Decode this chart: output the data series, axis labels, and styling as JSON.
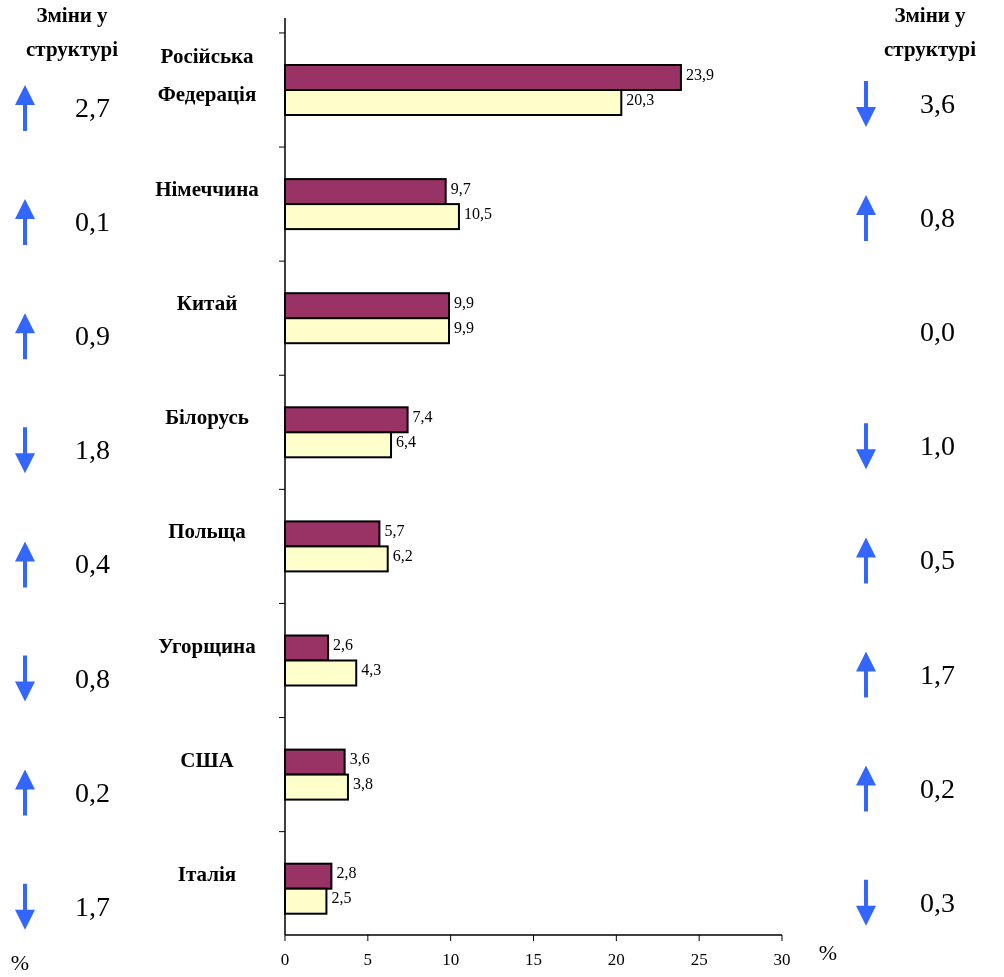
{
  "chart_data": {
    "type": "bar",
    "orientation": "horizontal",
    "categories": [
      "Російська\nФедерація",
      "Німеччина",
      "Китай",
      "Білорусь",
      "Польща",
      "Угорщина",
      "США",
      "Італія"
    ],
    "series": [
      {
        "color": "#993366",
        "values": [
          23.9,
          9.7,
          9.9,
          7.4,
          5.7,
          2.6,
          3.6,
          2.8
        ],
        "value_labels": [
          "23,9",
          "9,7",
          "9,9",
          "7,4",
          "5,7",
          "2,6",
          "3,6",
          "2,8"
        ]
      },
      {
        "color": "#ffffcc",
        "values": [
          20.3,
          10.5,
          9.9,
          6.4,
          6.2,
          4.3,
          3.8,
          2.5
        ],
        "value_labels": [
          "20,3",
          "10,5",
          "9,9",
          "6,4",
          "6,2",
          "4,3",
          "3,8",
          "2,5"
        ]
      }
    ],
    "xlim": [
      0,
      30
    ],
    "xticks": [
      0,
      5,
      10,
      15,
      20,
      25,
      30
    ],
    "grid": false,
    "annotations": [
      "Зміни у\nструктурі",
      "Зміни у\nструктурі",
      "%",
      "%",
      "2,7",
      "0,1",
      "0,9",
      "1,8",
      "0,4",
      "0,8",
      "0,2",
      "1,7",
      "3,6",
      "0,8",
      "0,0",
      "1,0",
      "0,5",
      "1,7",
      "0,2",
      "0,3"
    ]
  }
}
